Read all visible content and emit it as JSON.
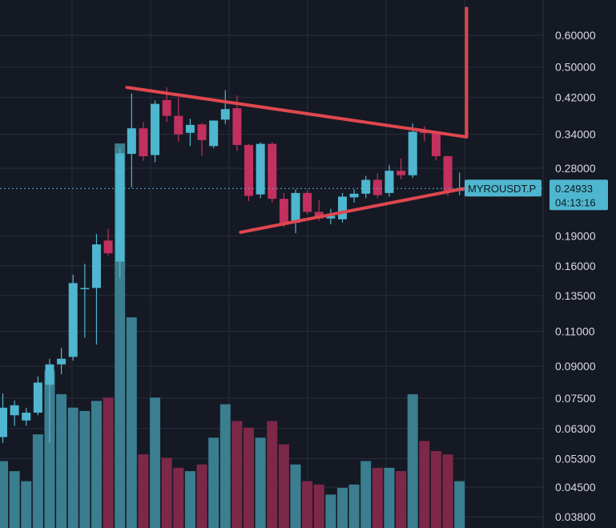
{
  "chart_data": {
    "type": "candlestick",
    "scale": "log",
    "grid": true,
    "ylim": [
      0.036,
      0.72
    ],
    "y_ticks": [
      0.6,
      0.5,
      0.42,
      0.34,
      0.28,
      0.19,
      0.16,
      0.135,
      0.11,
      0.09,
      0.075,
      0.063,
      0.053,
      0.045,
      0.038
    ],
    "y_tick_labels": [
      "0.60000",
      "0.50000",
      "0.42000",
      "0.34000",
      "0.28000",
      "0.19000",
      "0.16000",
      "0.13500",
      "0.11000",
      "0.09000",
      "0.07500",
      "0.06300",
      "0.05300",
      "0.04500",
      "0.03800"
    ],
    "symbol": "MYROUSDT.P",
    "last_price": 0.24933,
    "last_price_label": "0.24933",
    "countdown": "04:13:16",
    "colors": {
      "up": "#4fb6cf",
      "down": "#c2305f",
      "up_volume": "#3a7e8f",
      "down_volume": "#7d2848",
      "trendline": "#e0474f",
      "grid": "#2a2e3c",
      "tag_bg": "#4fb6cf",
      "background": "#151924"
    },
    "candles": [
      {
        "o": 0.06,
        "h": 0.077,
        "l": 0.058,
        "c": 0.071,
        "v": 0.2
      },
      {
        "o": 0.068,
        "h": 0.074,
        "l": 0.064,
        "c": 0.072,
        "v": 0.17
      },
      {
        "o": 0.066,
        "h": 0.071,
        "l": 0.064,
        "c": 0.069,
        "v": 0.14
      },
      {
        "o": 0.069,
        "h": 0.085,
        "l": 0.068,
        "c": 0.082,
        "v": 0.28
      },
      {
        "o": 0.081,
        "h": 0.094,
        "l": 0.058,
        "c": 0.091,
        "v": 0.47
      },
      {
        "o": 0.091,
        "h": 0.1,
        "l": 0.086,
        "c": 0.094,
        "v": 0.4
      },
      {
        "o": 0.095,
        "h": 0.152,
        "l": 0.093,
        "c": 0.145,
        "v": 0.36
      },
      {
        "o": 0.141,
        "h": 0.162,
        "l": 0.106,
        "c": 0.141,
        "v": 0.35
      },
      {
        "o": 0.141,
        "h": 0.192,
        "l": 0.102,
        "c": 0.181,
        "v": 0.38
      },
      {
        "o": 0.185,
        "h": 0.198,
        "l": 0.17,
        "c": 0.172,
        "v": 0.39
      },
      {
        "o": 0.164,
        "h": 0.315,
        "l": 0.149,
        "c": 0.305,
        "v": 1.15
      },
      {
        "o": 0.304,
        "h": 0.43,
        "l": 0.251,
        "c": 0.352,
        "v": 0.63
      },
      {
        "o": 0.352,
        "h": 0.365,
        "l": 0.292,
        "c": 0.3,
        "v": 0.22
      },
      {
        "o": 0.302,
        "h": 0.413,
        "l": 0.29,
        "c": 0.405,
        "v": 0.39
      },
      {
        "o": 0.414,
        "h": 0.445,
        "l": 0.365,
        "c": 0.378,
        "v": 0.21
      },
      {
        "o": 0.378,
        "h": 0.42,
        "l": 0.326,
        "c": 0.34,
        "v": 0.18
      },
      {
        "o": 0.343,
        "h": 0.372,
        "l": 0.318,
        "c": 0.359,
        "v": 0.17
      },
      {
        "o": 0.36,
        "h": 0.363,
        "l": 0.301,
        "c": 0.329,
        "v": 0.19
      },
      {
        "o": 0.318,
        "h": 0.368,
        "l": 0.314,
        "c": 0.368,
        "v": 0.27
      },
      {
        "o": 0.37,
        "h": 0.438,
        "l": 0.361,
        "c": 0.393,
        "v": 0.37
      },
      {
        "o": 0.395,
        "h": 0.425,
        "l": 0.309,
        "c": 0.32,
        "v": 0.32
      },
      {
        "o": 0.32,
        "h": 0.322,
        "l": 0.232,
        "c": 0.239,
        "v": 0.3
      },
      {
        "o": 0.241,
        "h": 0.325,
        "l": 0.236,
        "c": 0.322,
        "v": 0.27
      },
      {
        "o": 0.322,
        "h": 0.325,
        "l": 0.23,
        "c": 0.235,
        "v": 0.32
      },
      {
        "o": 0.235,
        "h": 0.243,
        "l": 0.2,
        "c": 0.205,
        "v": 0.25
      },
      {
        "o": 0.205,
        "h": 0.248,
        "l": 0.193,
        "c": 0.243,
        "v": 0.19
      },
      {
        "o": 0.243,
        "h": 0.247,
        "l": 0.215,
        "c": 0.218,
        "v": 0.14
      },
      {
        "o": 0.218,
        "h": 0.233,
        "l": 0.207,
        "c": 0.21,
        "v": 0.13
      },
      {
        "o": 0.21,
        "h": 0.222,
        "l": 0.203,
        "c": 0.213,
        "v": 0.1
      },
      {
        "o": 0.209,
        "h": 0.243,
        "l": 0.205,
        "c": 0.238,
        "v": 0.12
      },
      {
        "o": 0.237,
        "h": 0.248,
        "l": 0.23,
        "c": 0.242,
        "v": 0.13
      },
      {
        "o": 0.242,
        "h": 0.268,
        "l": 0.236,
        "c": 0.262,
        "v": 0.2
      },
      {
        "o": 0.262,
        "h": 0.272,
        "l": 0.236,
        "c": 0.24,
        "v": 0.18
      },
      {
        "o": 0.243,
        "h": 0.285,
        "l": 0.238,
        "c": 0.276,
        "v": 0.18
      },
      {
        "o": 0.276,
        "h": 0.296,
        "l": 0.263,
        "c": 0.269,
        "v": 0.17
      },
      {
        "o": 0.269,
        "h": 0.362,
        "l": 0.265,
        "c": 0.345,
        "v": 0.4
      },
      {
        "o": 0.345,
        "h": 0.356,
        "l": 0.327,
        "c": 0.343,
        "v": 0.26
      },
      {
        "o": 0.344,
        "h": 0.346,
        "l": 0.293,
        "c": 0.3,
        "v": 0.23
      },
      {
        "o": 0.3,
        "h": 0.301,
        "l": 0.239,
        "c": 0.246,
        "v": 0.22
      },
      {
        "o": 0.246,
        "h": 0.273,
        "l": 0.24,
        "c": 0.249,
        "v": 0.14
      }
    ],
    "trendlines": [
      {
        "name": "upper",
        "points": [
          {
            "i": 10.6,
            "p": 0.445
          },
          {
            "i": 39.6,
            "p": 0.335
          }
        ]
      },
      {
        "name": "lower",
        "points": [
          {
            "i": 20.3,
            "p": 0.194
          },
          {
            "i": 39.3,
            "p": 0.249
          }
        ]
      },
      {
        "name": "vertical",
        "points": [
          {
            "i": 39.6,
            "p": 0.335
          },
          {
            "i": 39.6,
            "p": 0.7
          }
        ]
      }
    ]
  }
}
